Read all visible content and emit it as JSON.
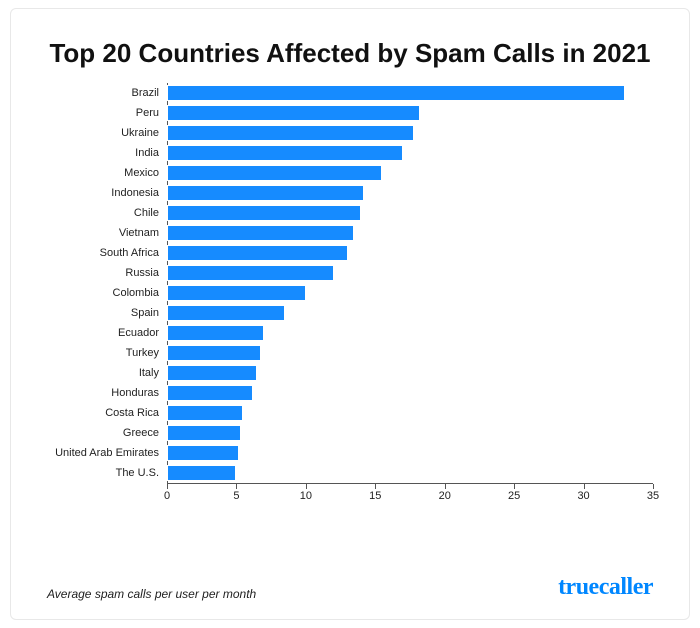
{
  "title": "Top 20 Countries Affected by Spam Calls in 2021",
  "title_fontsize": 26,
  "title_color": "#111111",
  "caption": "Average spam calls per user per month",
  "brand": "truecaller",
  "brand_color": "#0087ff",
  "chart": {
    "type": "bar-horizontal",
    "background_color": "#ffffff",
    "bar_color": "#168bff",
    "bar_border_color": "#ffffff",
    "axis_color": "#555555",
    "label_fontsize": 11,
    "xlim": [
      0,
      35
    ],
    "xtick_step": 5,
    "xticks": [
      0,
      5,
      10,
      15,
      20,
      25,
      30,
      35
    ],
    "categories": [
      "Brazil",
      "Peru",
      "Ukraine",
      "India",
      "Mexico",
      "Indonesia",
      "Chile",
      "Vietnam",
      "South Africa",
      "Russia",
      "Colombia",
      "Spain",
      "Ecuador",
      "Turkey",
      "Italy",
      "Honduras",
      "Costa Rica",
      "Greece",
      "United Arab Emirates",
      "The U.S."
    ],
    "values": [
      33.0,
      18.2,
      17.8,
      17.0,
      15.5,
      14.2,
      14.0,
      13.5,
      13.0,
      12.0,
      10.0,
      8.5,
      7.0,
      6.8,
      6.5,
      6.2,
      5.5,
      5.3,
      5.2,
      5.0
    ]
  }
}
